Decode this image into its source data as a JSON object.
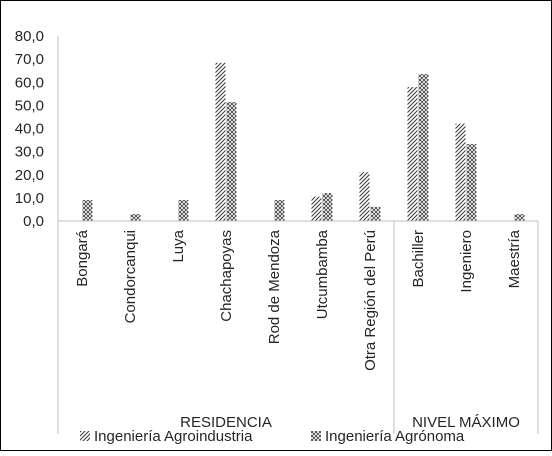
{
  "chart_data": {
    "type": "bar",
    "title": "",
    "xlabel": "",
    "ylabel": "",
    "ylim": [
      0,
      80
    ],
    "y_ticks": [
      "0,0",
      "10,0",
      "20,0",
      "30,0",
      "40,0",
      "50,0",
      "60,0",
      "70,0",
      "80,0"
    ],
    "grid": false,
    "legend_position": "bottom",
    "categories": [
      "Bongará",
      "Condorcanqui",
      "Luya",
      "Chachapoyas",
      "Rod de Mendoza",
      "Utcumbamba",
      "Otra Región del Perú",
      "Bachiller",
      "Ingeniero",
      "Maestría"
    ],
    "groups": [
      {
        "label": "RESIDENCIA",
        "count": 7
      },
      {
        "label": "NIVEL MÁXIMO",
        "count": 3
      }
    ],
    "series": [
      {
        "name": "Ingeniería Agroindustria",
        "pattern": "diagonal",
        "color": "#404040",
        "values": [
          0,
          0,
          0,
          68.4,
          0,
          10.5,
          21.1,
          57.9,
          42.1,
          0
        ]
      },
      {
        "name": "Ingeniería Agrónoma",
        "pattern": "crosshatch",
        "color": "#404040",
        "values": [
          9.1,
          3.0,
          9.1,
          51.5,
          9.1,
          12.1,
          6.1,
          63.6,
          33.3,
          3.0
        ]
      }
    ]
  }
}
